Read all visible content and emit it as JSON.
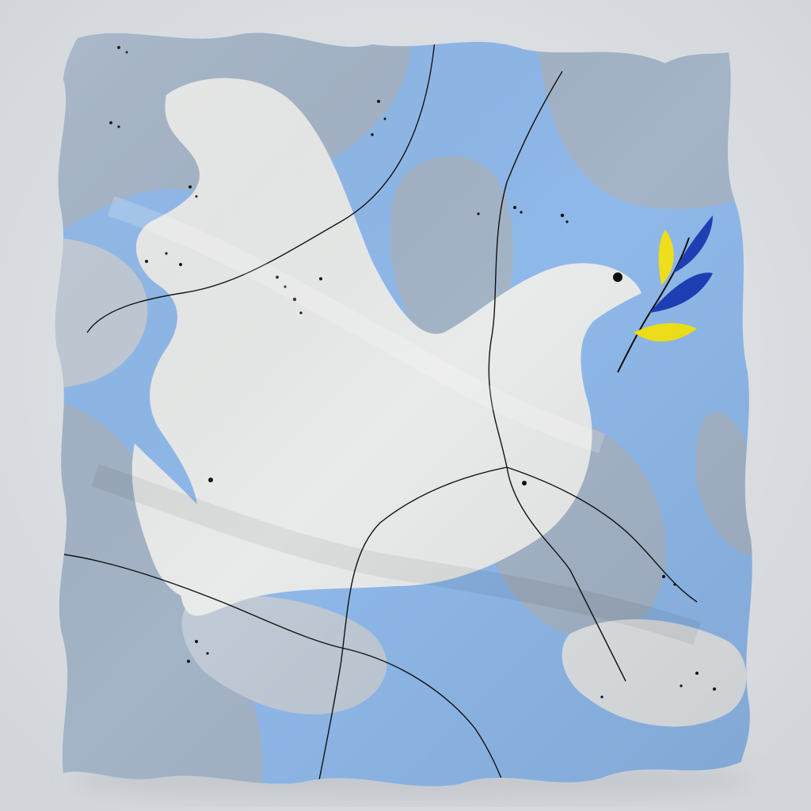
{
  "scene": {
    "subject": "silk-scarf-peace-dove",
    "colors": {
      "background": "#dadee2",
      "sky_blue": "#8fb9ea",
      "gray_blue": "#a4b4c7",
      "light_gray_blue": "#c0cad6",
      "dove_white": "#e9ebea",
      "line": "#111111",
      "leaf_yellow": "#f1e11b",
      "leaf_blue": "#1f3fb7",
      "shadow": "#bfc4c9"
    },
    "icons": [
      "dove-icon",
      "olive-branch-icon"
    ]
  }
}
